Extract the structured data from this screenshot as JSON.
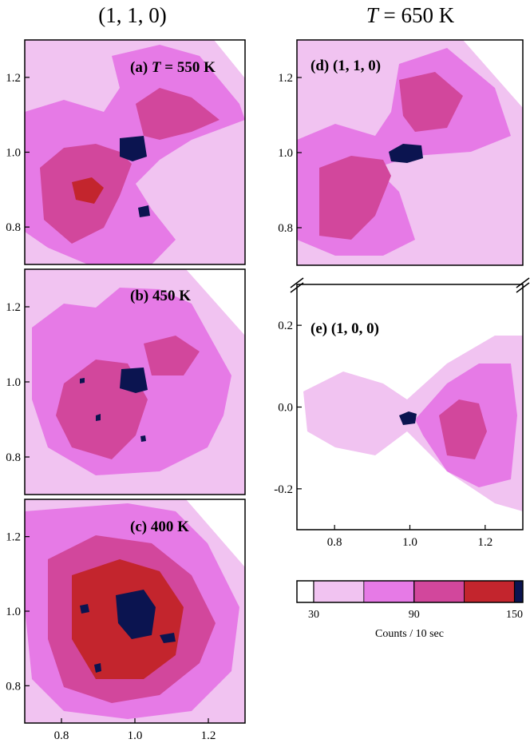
{
  "headers": {
    "left": "(1, 1, 0)",
    "right_var": "T",
    "right_rest": " = 650 K"
  },
  "colors": {
    "white": "#ffffff",
    "light": "#f1c3f1",
    "pink": "#e67ae6",
    "magenta": "#d2479c",
    "crimson": "#c3252d",
    "navy": "#0b1450"
  },
  "chart_data": [
    {
      "type": "heatmap",
      "panel": "a",
      "label_prefix": "(a) ",
      "label_var": "T",
      "label_rest": " = 550 K",
      "xlabel": "",
      "ylabel": "",
      "xlim": [
        0.7,
        1.3
      ],
      "ylim": [
        0.7,
        1.3
      ],
      "yticks": [
        "0.8",
        "1.0",
        "1.2"
      ],
      "yticks_values": [
        0.8,
        1.0,
        1.2
      ],
      "peak_center": [
        0.98,
        1.01
      ]
    },
    {
      "type": "heatmap",
      "panel": "b",
      "label": "(b) 450 K",
      "xlim": [
        0.7,
        1.3
      ],
      "ylim": [
        0.7,
        1.3
      ],
      "yticks": [
        "0.8",
        "1.0",
        "1.2"
      ],
      "yticks_values": [
        0.8,
        1.0,
        1.2
      ],
      "peak_center": [
        0.98,
        1.0
      ]
    },
    {
      "type": "heatmap",
      "panel": "c",
      "label": "(c) 400 K",
      "xlim": [
        0.7,
        1.3
      ],
      "ylim": [
        0.7,
        1.3
      ],
      "xticks": [
        "0.8",
        "1.0",
        "1.2"
      ],
      "xticks_values": [
        0.8,
        1.0,
        1.2
      ],
      "yticks": [
        "0.8",
        "1.0",
        "1.2"
      ],
      "yticks_values": [
        0.8,
        1.0,
        1.2
      ],
      "peak_center": [
        1.0,
        1.0
      ]
    },
    {
      "type": "heatmap",
      "panel": "d",
      "label": "(d)   (1, 1, 0)",
      "xlim": [
        0.7,
        1.3
      ],
      "ylim": [
        0.7,
        1.3
      ],
      "yticks": [
        "0.8",
        "1.0",
        "1.2"
      ],
      "yticks_values": [
        0.8,
        1.0,
        1.2
      ],
      "peak_center": [
        0.99,
        1.0
      ]
    },
    {
      "type": "heatmap",
      "panel": "e",
      "label": "(e)   (1, 0, 0)",
      "xlim": [
        0.7,
        1.3
      ],
      "ylim": [
        -0.3,
        0.3
      ],
      "xticks": [
        "0.8",
        "1.0",
        "1.2"
      ],
      "xticks_values": [
        0.8,
        1.0,
        1.2
      ],
      "yticks": [
        "-0.2",
        "0.0",
        "0.2"
      ],
      "yticks_values": [
        -0.2,
        0.0,
        0.2
      ],
      "peak_center": [
        1.0,
        0.0
      ]
    }
  ],
  "colorbar": {
    "title": "Counts / 10 sec",
    "tick_labels": [
      "30",
      "90",
      "150"
    ],
    "tick_values": [
      30,
      90,
      150
    ],
    "range": [
      20,
      155
    ],
    "levels": [
      {
        "from": 20,
        "to": 30,
        "color": "#ffffff"
      },
      {
        "from": 30,
        "to": 60,
        "color": "#f1c3f1"
      },
      {
        "from": 60,
        "to": 90,
        "color": "#e67ae6"
      },
      {
        "from": 90,
        "to": 120,
        "color": "#d2479c"
      },
      {
        "from": 120,
        "to": 150,
        "color": "#c3252d"
      },
      {
        "from": 150,
        "to": 155,
        "color": "#0b1450"
      }
    ]
  }
}
